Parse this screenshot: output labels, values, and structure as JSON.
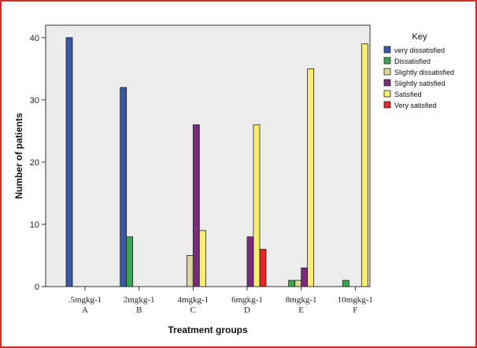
{
  "chart_data": {
    "type": "bar",
    "categories": [
      ".5mgkg-1",
      "2mgkg-1",
      "4mgkg-1",
      "6mgkg-1",
      "8mgkg-1",
      "10mgkg-1"
    ],
    "category_letters": [
      "A",
      "B",
      "C",
      "D",
      "E",
      "F"
    ],
    "xlabel": "Treatment groups",
    "ylabel": "Number of patients",
    "ylim": [
      0,
      42
    ],
    "yticks": [
      0,
      10,
      20,
      30,
      40
    ],
    "grid": false,
    "legend": {
      "title": "Key",
      "placement": "top-right, outside plot"
    },
    "series": [
      {
        "name": "very dissatisfied",
        "color": "#3a56a5",
        "values": [
          40,
          32,
          0,
          0,
          0,
          0
        ]
      },
      {
        "name": "Dissatisfied",
        "color": "#3aa552",
        "values": [
          0,
          8,
          0,
          0,
          1,
          1
        ]
      },
      {
        "name": "Slightly dissatisfied",
        "color": "#ded59a",
        "values": [
          0,
          0,
          5,
          0,
          1,
          0
        ]
      },
      {
        "name": "Slightly satisfied",
        "color": "#7a2b7f",
        "values": [
          0,
          0,
          26,
          8,
          3,
          0
        ]
      },
      {
        "name": "Satisfied",
        "color": "#f6ee6e",
        "values": [
          0,
          0,
          9,
          26,
          35,
          39
        ]
      },
      {
        "name": "Very satisfied",
        "color": "#e3262b",
        "values": [
          0,
          0,
          0,
          6,
          0,
          0
        ]
      }
    ]
  }
}
